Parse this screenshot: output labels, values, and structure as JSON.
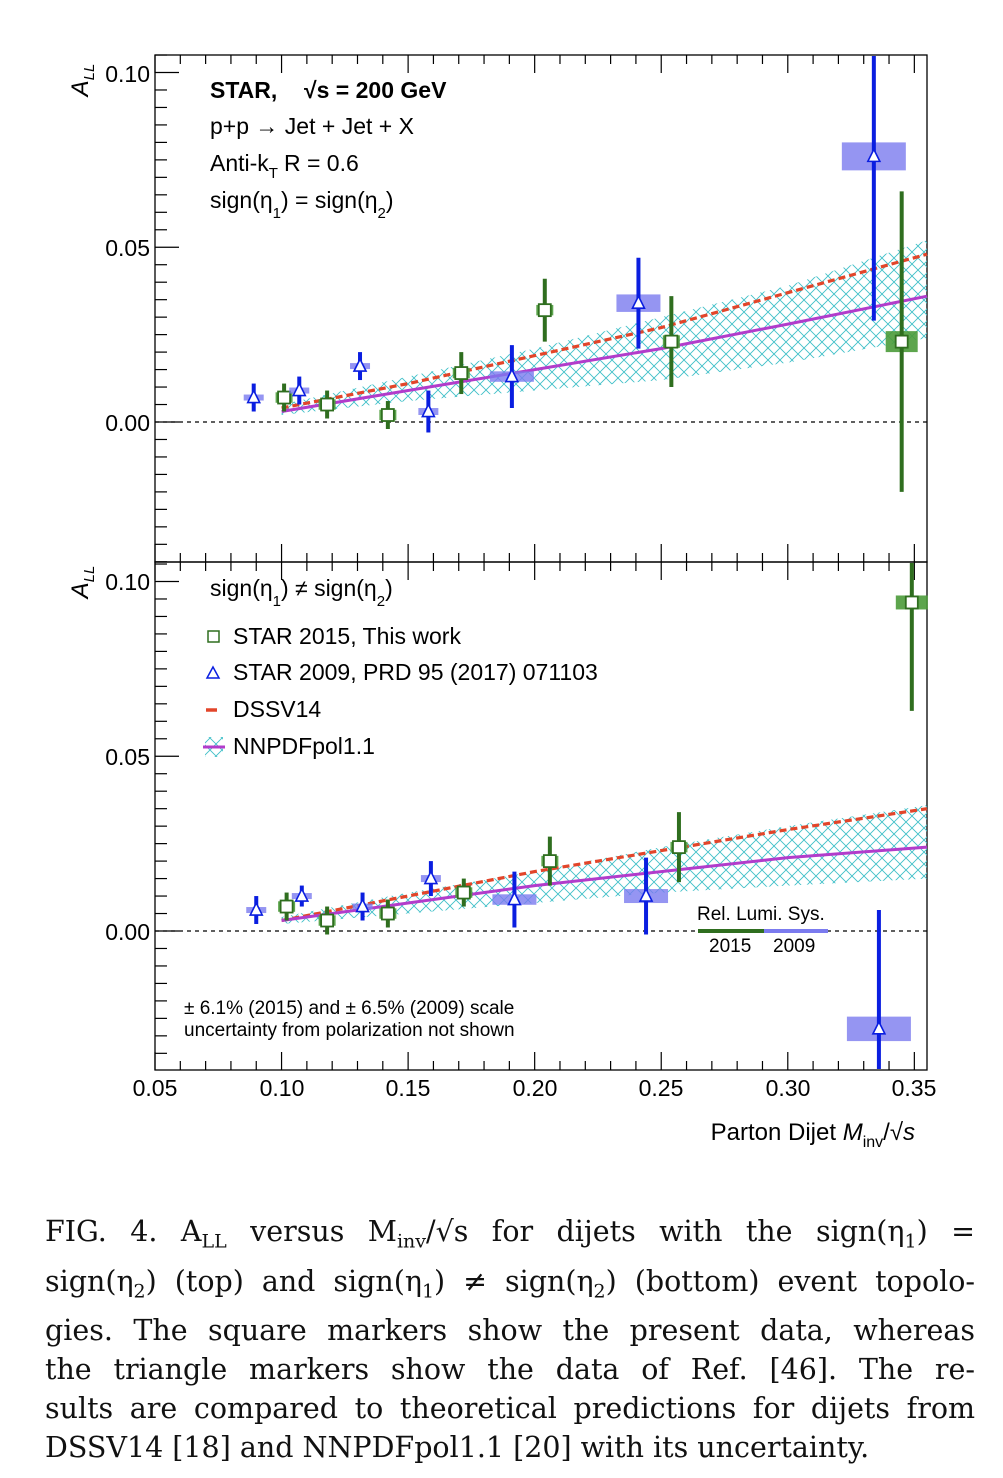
{
  "chart_data": [
    {
      "type": "scatter",
      "panel": "top",
      "ylabel": "A_LL",
      "xlim": [
        0.05,
        0.355
      ],
      "ylim": [
        -0.04,
        0.105
      ],
      "yticks": [
        "0.10",
        "0.05",
        "0.00"
      ],
      "info_lines": [
        "STAR,",
        "√s = 200 GeV",
        "p+p → Jet + Jet + X",
        "Anti-k",
        "T",
        "R = 0.6",
        "sign(η",
        "1",
        ") = sign(η",
        "2",
        ")"
      ],
      "series": [
        {
          "name": "STAR 2015, This work",
          "marker": "square",
          "color": "#2f6e1f",
          "points": [
            {
              "x": 0.101,
              "y": 0.007,
              "err": 0.004,
              "sys": 0.0015
            },
            {
              "x": 0.118,
              "y": 0.005,
              "err": 0.004,
              "sys": 0.0015
            },
            {
              "x": 0.142,
              "y": 0.002,
              "err": 0.004,
              "sys": 0.0015
            },
            {
              "x": 0.171,
              "y": 0.014,
              "err": 0.006,
              "sys": 0.0015
            },
            {
              "x": 0.204,
              "y": 0.032,
              "err": 0.009,
              "sys": 0.0015
            },
            {
              "x": 0.254,
              "y": 0.023,
              "err": 0.013,
              "sys": 0.0018
            },
            {
              "x": 0.345,
              "y": 0.023,
              "err": 0.043,
              "sys": 0.003
            }
          ]
        },
        {
          "name": "STAR 2009, PRD 95 (2017) 071103",
          "marker": "triangle",
          "color": "#0a1ee0",
          "points": [
            {
              "x": 0.089,
              "y": 0.007,
              "err": 0.004,
              "sys": 0.0003
            },
            {
              "x": 0.107,
              "y": 0.009,
              "err": 0.004,
              "sys": 0.0005
            },
            {
              "x": 0.131,
              "y": 0.016,
              "err": 0.004,
              "sys": 0.0005
            },
            {
              "x": 0.158,
              "y": 0.003,
              "err": 0.006,
              "sys": 0.001
            },
            {
              "x": 0.191,
              "y": 0.013,
              "err": 0.009,
              "sys": 0.0015
            },
            {
              "x": 0.241,
              "y": 0.034,
              "err": 0.013,
              "sys": 0.0025
            },
            {
              "x": 0.334,
              "y": 0.076,
              "err": 0.047,
              "sys": 0.004
            }
          ]
        }
      ],
      "theory": {
        "x": [
          0.1,
          0.15,
          0.2,
          0.25,
          0.3,
          0.355
        ],
        "dssv14": [
          0.004,
          0.011,
          0.019,
          0.027,
          0.037,
          0.048
        ],
        "nnpdf": [
          0.003,
          0.009,
          0.015,
          0.021,
          0.028,
          0.036
        ],
        "nnpdf_lo": [
          0.002,
          0.006,
          0.009,
          0.012,
          0.017,
          0.024
        ],
        "nnpdf_hi": [
          0.005,
          0.013,
          0.021,
          0.03,
          0.039,
          0.052
        ]
      }
    },
    {
      "type": "scatter",
      "panel": "bottom",
      "ylabel": "A_LL",
      "xlabel": "Parton Dijet M_inv/√s",
      "xlim": [
        0.05,
        0.355
      ],
      "ylim": [
        -0.04,
        0.105
      ],
      "yticks": [
        "0.10",
        "0.05",
        "0.00"
      ],
      "xticks": [
        "0.05",
        "0.10",
        "0.15",
        "0.20",
        "0.25",
        "0.30",
        "0.35"
      ],
      "series": [
        {
          "name": "STAR 2015, This work",
          "marker": "square",
          "color": "#2f6e1f",
          "points": [
            {
              "x": 0.102,
              "y": 0.007,
              "err": 0.004,
              "sys": 0.0015
            },
            {
              "x": 0.118,
              "y": 0.003,
              "err": 0.004,
              "sys": 0.0015
            },
            {
              "x": 0.142,
              "y": 0.005,
              "err": 0.004,
              "sys": 0.0015
            },
            {
              "x": 0.172,
              "y": 0.011,
              "err": 0.004,
              "sys": 0.0015
            },
            {
              "x": 0.206,
              "y": 0.02,
              "err": 0.007,
              "sys": 0.0015
            },
            {
              "x": 0.257,
              "y": 0.024,
              "err": 0.01,
              "sys": 0.0015
            },
            {
              "x": 0.349,
              "y": 0.094,
              "err": 0.031,
              "sys": 0.002
            }
          ]
        },
        {
          "name": "STAR 2009, PRD 95 (2017) 071103",
          "marker": "triangle",
          "color": "#0a1ee0",
          "points": [
            {
              "x": 0.09,
              "y": 0.006,
              "err": 0.004,
              "sys": 0.0005
            },
            {
              "x": 0.108,
              "y": 0.01,
              "err": 0.003,
              "sys": 0.0005
            },
            {
              "x": 0.132,
              "y": 0.007,
              "err": 0.004,
              "sys": 0.0005
            },
            {
              "x": 0.159,
              "y": 0.015,
              "err": 0.005,
              "sys": 0.001
            },
            {
              "x": 0.192,
              "y": 0.009,
              "err": 0.008,
              "sys": 0.0015
            },
            {
              "x": 0.244,
              "y": 0.01,
              "err": 0.011,
              "sys": 0.002
            },
            {
              "x": 0.336,
              "y": -0.028,
              "err": 0.034,
              "sys": 0.0035
            }
          ]
        }
      ],
      "theory": {
        "x": [
          0.1,
          0.15,
          0.2,
          0.25,
          0.3,
          0.355
        ],
        "dssv14": [
          0.003,
          0.01,
          0.017,
          0.023,
          0.029,
          0.035
        ],
        "nnpdf": [
          0.003,
          0.008,
          0.013,
          0.017,
          0.021,
          0.024
        ],
        "nnpdf_lo": [
          0.002,
          0.005,
          0.008,
          0.011,
          0.013,
          0.015
        ],
        "nnpdf_hi": [
          0.004,
          0.011,
          0.017,
          0.024,
          0.03,
          0.036
        ]
      },
      "legend": {
        "title_parts": [
          "sign(η",
          "1",
          ") ≠ sign(η",
          "2",
          ")"
        ],
        "entries": [
          "STAR 2015, This work",
          "STAR 2009, PRD 95 (2017) 071103",
          "DSSV14",
          "NNPDFpol1.1"
        ]
      },
      "lumi": {
        "label": "Rel. Lumi. Sys.",
        "label_2015": "2015",
        "label_2009": "2009"
      },
      "note": [
        "± 6.1% (2015) and ± 6.5% (2009) scale",
        "uncertainty from polarization not shown"
      ]
    }
  ],
  "caption_lines": [
    "FIG. 4.   A",
    "LL",
    " versus M",
    "inv",
    "/√s for dijets with the sign(η",
    "1",
    ") =",
    "sign(η",
    "2",
    ") (top) and sign(η",
    "1",
    ") ≠ sign(η",
    "2",
    ") (bottom) event topolo-",
    "gies.   The square markers show the present data, whereas",
    "the triangle markers show the data of Ref. [46].   The re-",
    "sults are compared to theoretical predictions for dijets from",
    "DSSV14 [18] and NNPDFpol1.1 [20] with its uncertainty."
  ],
  "colors": {
    "green": "#2f6e1f",
    "green_box": "#4b9b3a",
    "blue": "#0a1ee0",
    "blue_box": "#7b7bef",
    "dssv": "#e2452a",
    "nnpdf": "#b23ccb",
    "band": "#3fc0c8"
  }
}
